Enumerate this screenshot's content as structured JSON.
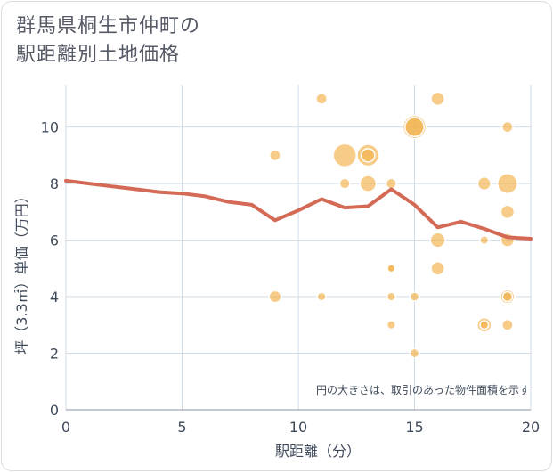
{
  "chart_data": {
    "type": "scatter",
    "title_line1": "群馬県桐生市仲町の",
    "title_line2": "駅距離別土地価格",
    "xlabel": "駅距離（分）",
    "ylabel": "坪（3.3㎡）単価（万円）",
    "note": "円の大きさは、取引のあった物件面積を示す",
    "xlim": [
      0,
      20
    ],
    "ylim": [
      0,
      11.5
    ],
    "xticks": [
      0,
      5,
      10,
      15,
      20
    ],
    "yticks": [
      0,
      2,
      4,
      6,
      8,
      10
    ],
    "bubble_color": "#f2b04a",
    "line_color": "#d46a55",
    "points": [
      {
        "x": 9,
        "y": 9,
        "size": 1
      },
      {
        "x": 9,
        "y": 4,
        "size": 1.2
      },
      {
        "x": 11,
        "y": 11,
        "size": 1
      },
      {
        "x": 11,
        "y": 4,
        "size": 0.6
      },
      {
        "x": 12,
        "y": 9,
        "size": 4.5
      },
      {
        "x": 12,
        "y": 8,
        "size": 0.9
      },
      {
        "x": 13,
        "y": 9,
        "size": 4
      },
      {
        "x": 13,
        "y": 9,
        "size": 1.5
      },
      {
        "x": 13,
        "y": 8,
        "size": 2.2
      },
      {
        "x": 14,
        "y": 8,
        "size": 0.9
      },
      {
        "x": 14,
        "y": 5,
        "size": 0.7
      },
      {
        "x": 14,
        "y": 5,
        "size": 0.5
      },
      {
        "x": 14,
        "y": 4,
        "size": 0.6
      },
      {
        "x": 14,
        "y": 3,
        "size": 0.6
      },
      {
        "x": 15,
        "y": 10,
        "size": 4.5
      },
      {
        "x": 15,
        "y": 10,
        "size": 3
      },
      {
        "x": 15,
        "y": 4,
        "size": 0.7
      },
      {
        "x": 15,
        "y": 2,
        "size": 0.7
      },
      {
        "x": 16,
        "y": 11,
        "size": 1.5
      },
      {
        "x": 16,
        "y": 6,
        "size": 1.8
      },
      {
        "x": 16,
        "y": 5,
        "size": 1.5
      },
      {
        "x": 18,
        "y": 8,
        "size": 1.4
      },
      {
        "x": 18,
        "y": 6,
        "size": 0.6
      },
      {
        "x": 18,
        "y": 3,
        "size": 1.7
      },
      {
        "x": 18,
        "y": 3,
        "size": 0.6
      },
      {
        "x": 19,
        "y": 10,
        "size": 1
      },
      {
        "x": 19,
        "y": 8,
        "size": 3.3
      },
      {
        "x": 19,
        "y": 7,
        "size": 1.5
      },
      {
        "x": 19,
        "y": 6,
        "size": 1.5
      },
      {
        "x": 19,
        "y": 4,
        "size": 1.6
      },
      {
        "x": 19,
        "y": 4,
        "size": 0.8
      },
      {
        "x": 19,
        "y": 3,
        "size": 1
      }
    ],
    "line": {
      "x": [
        0,
        1,
        2,
        3,
        4,
        5,
        6,
        7,
        8,
        9,
        10,
        11,
        12,
        13,
        14,
        15,
        16,
        17,
        18,
        19,
        20
      ],
      "y": [
        8.1,
        8.0,
        7.9,
        7.8,
        7.7,
        7.65,
        7.55,
        7.35,
        7.25,
        6.7,
        7.05,
        7.45,
        7.15,
        7.2,
        7.8,
        7.25,
        6.45,
        6.65,
        6.4,
        6.1,
        6.05
      ]
    }
  }
}
